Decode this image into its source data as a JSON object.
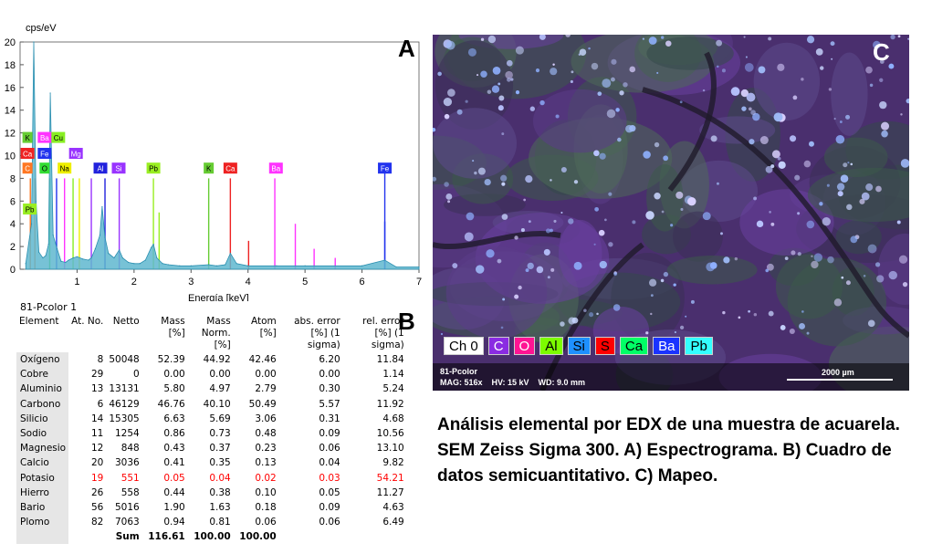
{
  "panel_a": {
    "letter": "A",
    "chart_data": {
      "type": "line",
      "ylabel": "cps/eV",
      "xlabel": "Energía [keV]",
      "xlim": [
        0,
        7
      ],
      "ylim": [
        0,
        20
      ],
      "x_ticks": [
        "1",
        "2",
        "3",
        "4",
        "5",
        "6",
        "7"
      ],
      "y_ticks": [
        "0",
        "2",
        "4",
        "6",
        "8",
        "10",
        "12",
        "14",
        "16",
        "18",
        "20"
      ],
      "series": [
        {
          "x": [
            0.1,
            0.2,
            0.24,
            0.28,
            0.33,
            0.4,
            0.45,
            0.5,
            0.53,
            0.58,
            0.65,
            0.72,
            0.8,
            0.85,
            0.93,
            1.0,
            1.1,
            1.2,
            1.25,
            1.32,
            1.4,
            1.44,
            1.49,
            1.55,
            1.65,
            1.74,
            1.8,
            1.9,
            2.0,
            2.1,
            2.2,
            2.3,
            2.34,
            2.4,
            2.5,
            2.6,
            2.8,
            3.0,
            3.31,
            3.45,
            3.6,
            3.69,
            3.8,
            4.0,
            4.5,
            5.0,
            6.0,
            6.4,
            6.6,
            7.0
          ],
          "y": [
            0.5,
            4.0,
            20.0,
            6.0,
            1.5,
            1.0,
            1.2,
            2.2,
            15.5,
            3.0,
            1.8,
            0.7,
            0.6,
            0.8,
            1.0,
            1.1,
            0.9,
            0.8,
            1.0,
            1.8,
            3.0,
            5.5,
            2.8,
            1.4,
            1.0,
            1.7,
            1.0,
            0.6,
            0.5,
            0.5,
            0.8,
            1.9,
            2.2,
            1.0,
            0.5,
            0.4,
            0.3,
            0.3,
            0.4,
            0.3,
            0.4,
            1.4,
            0.5,
            0.3,
            0.3,
            0.3,
            0.3,
            0.8,
            0.2,
            0.2
          ]
        }
      ],
      "peak_labels": [
        {
          "el": "K",
          "color": "#66cc33"
        },
        {
          "el": "Ba",
          "color": "#ff33ff"
        },
        {
          "el": "Cu",
          "color": "#88ee22"
        },
        {
          "el": "Ca",
          "color": "#ee2222"
        },
        {
          "el": "Fe",
          "color": "#2233ee"
        },
        {
          "el": "Mg",
          "color": "#9933ff"
        },
        {
          "el": "C",
          "color": "#ff7722"
        },
        {
          "el": "O",
          "color": "#33dd33"
        },
        {
          "el": "Na",
          "color": "#eeee00"
        },
        {
          "el": "Al",
          "color": "#2222dd"
        },
        {
          "el": "Si",
          "color": "#9933ff"
        },
        {
          "el": "Pb",
          "color": "#99ee22"
        },
        {
          "el": "K",
          "color": "#66cc33"
        },
        {
          "el": "Ca",
          "color": "#ee2222"
        },
        {
          "el": "Ba",
          "color": "#ff33ff"
        },
        {
          "el": "Fe",
          "color": "#2233ee"
        },
        {
          "el": "Pb",
          "color": "#99ee22"
        }
      ]
    }
  },
  "panel_b": {
    "letter": "B",
    "title": "81-Pcolor 1",
    "headers": [
      "Element",
      "At. No.",
      "Netto",
      "Mass [%]",
      "Mass Norm. [%]",
      "Atom [%]",
      "abs. error [%] (1 sigma)",
      "rel. error [%] (1 sigma)"
    ],
    "rows": [
      [
        "Oxígeno",
        "8",
        "50048",
        "52.39",
        "44.92",
        "42.46",
        "6.20",
        "11.84"
      ],
      [
        "Cobre",
        "29",
        "0",
        "0.00",
        "0.00",
        "0.00",
        "0.00",
        "1.14"
      ],
      [
        "Aluminio",
        "13",
        "13131",
        "5.80",
        "4.97",
        "2.79",
        "0.30",
        "5.24"
      ],
      [
        "Carbono",
        "6",
        "46129",
        "46.76",
        "40.10",
        "50.49",
        "5.57",
        "11.92"
      ],
      [
        "Silicio",
        "14",
        "15305",
        "6.63",
        "5.69",
        "3.06",
        "0.31",
        "4.68"
      ],
      [
        "Sodio",
        "11",
        "1254",
        "0.86",
        "0.73",
        "0.48",
        "0.09",
        "10.56"
      ],
      [
        "Magnesio",
        "12",
        "848",
        "0.43",
        "0.37",
        "0.23",
        "0.06",
        "13.10"
      ],
      [
        "Calcio",
        "20",
        "3036",
        "0.41",
        "0.35",
        "0.13",
        "0.04",
        "9.82"
      ],
      [
        "Potasio",
        "19",
        "551",
        "0.05",
        "0.04",
        "0.02",
        "0.03",
        "54.21"
      ],
      [
        "Hierro",
        "26",
        "558",
        "0.44",
        "0.38",
        "0.10",
        "0.05",
        "11.27"
      ],
      [
        "Bario",
        "56",
        "5016",
        "1.90",
        "1.63",
        "0.18",
        "0.09",
        "4.63"
      ],
      [
        "Plomo",
        "82",
        "7063",
        "0.94",
        "0.81",
        "0.06",
        "0.06",
        "6.49"
      ]
    ],
    "highlight_row": "Potasio",
    "highlight_color": "#ff0000",
    "sum_label": "Sum",
    "sum_values": [
      "116.61",
      "100.00",
      "100.00"
    ]
  },
  "panel_c": {
    "letter": "C",
    "legend": [
      {
        "label": "Ch 0",
        "bg": "#ffffff",
        "fg": "#000000"
      },
      {
        "label": "C",
        "bg": "#8a2be2",
        "fg": "#ffffff"
      },
      {
        "label": "O",
        "bg": "#ff1493",
        "fg": "#ffffff"
      },
      {
        "label": "Al",
        "bg": "#7cfc00",
        "fg": "#000000"
      },
      {
        "label": "Si",
        "bg": "#1e90ff",
        "fg": "#000000"
      },
      {
        "label": "S",
        "bg": "#ff0000",
        "fg": "#000000"
      },
      {
        "label": "Ca",
        "bg": "#00ff66",
        "fg": "#000000"
      },
      {
        "label": "Ba",
        "bg": "#1a33ff",
        "fg": "#ffffff"
      },
      {
        "label": "Pb",
        "bg": "#33ffff",
        "fg": "#000000"
      }
    ],
    "sample": "81-Pcolor",
    "info": "MAG: 516x    HV: 15 kV    WD: 9.0 mm",
    "scale_label": "2000 µm"
  },
  "caption": "Análisis elemental por EDX de una muestra de acuarela.  SEM Zeiss Sigma 300.  A) Espectrograma. B) Cuadro de datos semicuantitativo. C) Mapeo."
}
